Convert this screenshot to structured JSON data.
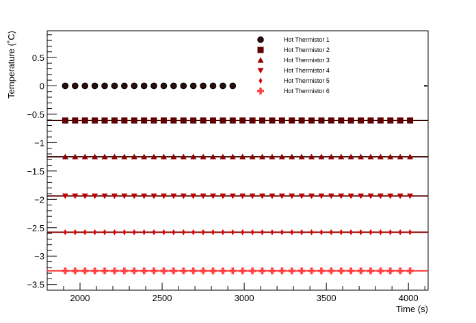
{
  "chart_data": {
    "type": "scatter",
    "xlabel": "Time (s)",
    "ylabel": "Temperature (˚C)",
    "xlim": [
      1800,
      4120
    ],
    "ylim": [
      -3.6,
      0.97
    ],
    "x_ticks": [
      2000,
      2500,
      3000,
      3500,
      4000
    ],
    "x_tick_labels": [
      "2000",
      "2500",
      "3000",
      "3500",
      "4000"
    ],
    "y_ticks": [
      -3.5,
      -3,
      -2.5,
      -2,
      -1.5,
      -1,
      -0.5,
      0,
      0.5
    ],
    "y_tick_labels": [
      "−3.5",
      "−3",
      "−2.5",
      "−2",
      "−1.5",
      "−1",
      "−0.5",
      "0",
      "0.5"
    ],
    "grid": false,
    "legend_position": "top-right",
    "series": [
      {
        "name": "Hot Thermistor 1",
        "marker": "circle",
        "color": "#2a0f0f",
        "edge": "#000000",
        "value": 0.0,
        "x_start": 1910,
        "x_end": 2950,
        "step": 60,
        "fit_line": false
      },
      {
        "name": "Hot Thermistor 2",
        "marker": "square",
        "color": "#600000",
        "value": -0.61,
        "x_start": 1910,
        "x_end": 4030,
        "step": 60,
        "fit_line": true,
        "line_color": "#3a0000"
      },
      {
        "name": "Hot Thermistor 3",
        "marker": "triangle-up",
        "color": "#900000",
        "value": -1.25,
        "x_start": 1910,
        "x_end": 4030,
        "step": 60,
        "fit_line": true,
        "line_color": "#3a0000"
      },
      {
        "name": "Hot Thermistor 4",
        "marker": "triangle-down",
        "color": "#c00000",
        "value": -1.94,
        "x_start": 1910,
        "x_end": 4030,
        "step": 60,
        "fit_line": true,
        "line_color": "#5a0000"
      },
      {
        "name": "Hot Thermistor 5",
        "marker": "diamond",
        "color": "#e00000",
        "value": -2.58,
        "x_start": 1910,
        "x_end": 4030,
        "step": 60,
        "fit_line": true,
        "line_color": "#8a0000"
      },
      {
        "name": "Hot Thermistor 6",
        "marker": "cross",
        "color": "#ff4040",
        "value": -3.26,
        "x_start": 1910,
        "x_end": 4030,
        "step": 60,
        "fit_line": true,
        "line_color": "#ff3030"
      }
    ]
  }
}
